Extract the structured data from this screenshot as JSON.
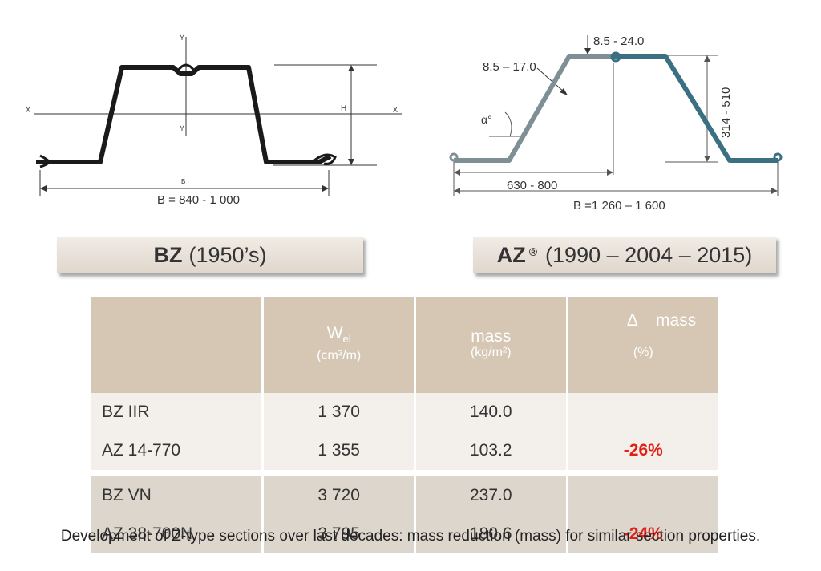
{
  "bz_diagram": {
    "axis_y_top": "Y",
    "axis_y_mid": "Y",
    "axis_x_left": "X",
    "axis_x_right": "X",
    "height_label": "H",
    "b_small": "B",
    "width_label": "B = 840 - 1 000"
  },
  "az_diagram": {
    "thickness_top": "8.5 - 24.0",
    "thickness_web": "8.5 – 17.0",
    "angle_label": "α°",
    "height_label": "314 - 510",
    "half_width_label": "630 - 800",
    "width_label": "B =1 260 – 1 600"
  },
  "bz_box": {
    "name": "BZ",
    "years": "(1950’s)"
  },
  "az_box": {
    "name": "AZ",
    "mark": "®",
    "years": "(1990 – 2004 – 2015)"
  },
  "table": {
    "header": {
      "col1": "",
      "wel_main": "W",
      "wel_sub": "el",
      "wel_unit": "(cm³/m)",
      "mass_main": "mass",
      "mass_unit": "(kg/m²)",
      "delta_main": "Δ    mass",
      "delta_unit": "(%)"
    },
    "rows": [
      {
        "section": "BZ IIR",
        "wel": "1 370",
        "mass": "140.0",
        "delta": ""
      },
      {
        "section": "AZ 14-770",
        "wel": "1 355",
        "mass": "103.2",
        "delta": "-26%"
      },
      {
        "section": "BZ VN",
        "wel": "3 720",
        "mass": "237.0",
        "delta": ""
      },
      {
        "section": "AZ 38-700N",
        "wel": "3 795",
        "mass": "180.6",
        "delta": "-24%"
      }
    ]
  },
  "caption": "Development of Z-type sections over last decades: mass reduction (mass) for similar section properties.",
  "colors": {
    "header_bg": "#d6c7b5",
    "row_light": "#f3efea",
    "row_dark": "#ddd6cd",
    "delta_red": "#e22016",
    "az_profile": "#3b6f82"
  }
}
